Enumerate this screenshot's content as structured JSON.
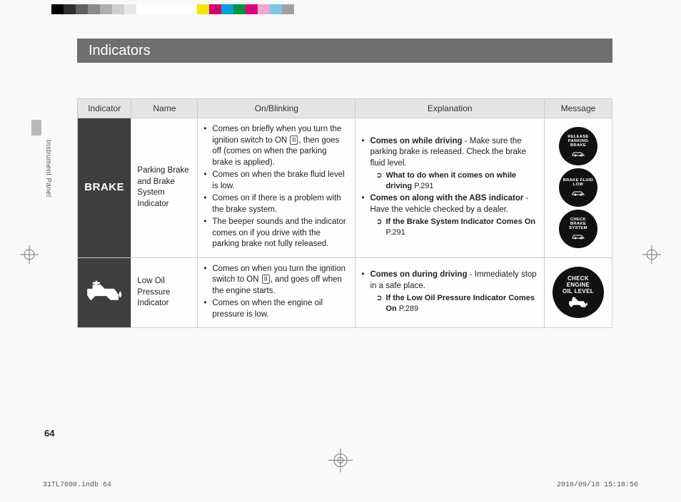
{
  "colorBar": [
    "#000000",
    "#2e2e2e",
    "#606060",
    "#8b8b8b",
    "#b0b0b0",
    "#d0d0d0",
    "#e8e8e8",
    "#ffffff",
    "#ffffff",
    "#ffffff",
    "#ffffff",
    "#ffffff",
    "#f2e600",
    "#d4006e",
    "#00a0dc",
    "#009640",
    "#e3007b",
    "#f4a6c7",
    "#7ec6e6",
    "#a0a0a0"
  ],
  "title": "Indicators",
  "sideLabel": "Instrument Panel",
  "pageNumber": "64",
  "footerLeft": "31TL7600.indb   64",
  "footerRight": "2010/09/10   15:18:56",
  "table": {
    "headers": [
      "Indicator",
      "Name",
      "On/Blinking",
      "Explanation",
      "Message"
    ],
    "rows": [
      {
        "indicator": {
          "type": "brake",
          "text": "BRAKE"
        },
        "name": "Parking Brake and Brake System Indicator",
        "onBlinking": {
          "items": [
            {
              "pre": "Comes on briefly when you turn the ignition switch to ON ",
              "ii": "II",
              "post": ", then goes off (comes on when the parking brake is applied)."
            },
            {
              "pre": "Comes on when the brake fluid level is low."
            },
            {
              "pre": "Comes on if there is a problem with the brake system."
            },
            {
              "pre": "The beeper sounds and the indicator comes on if you drive with the parking brake not fully released."
            }
          ]
        },
        "explanation": {
          "items": [
            {
              "bold": "Comes on while driving",
              "rest": " - Make sure the parking brake is released. Check the brake fluid level.",
              "ref": {
                "bold": "What to do when it comes on while driving",
                "page": "P.291"
              }
            },
            {
              "bold": "Comes on along with the ABS indicator",
              "rest": " - Have the vehicle checked by a dealer.",
              "ref": {
                "bold": "If the Brake System Indicator Comes On",
                "page": "P.291"
              }
            }
          ]
        },
        "messages": [
          {
            "lines": [
              "RELEASE",
              "PARKING",
              "BRAKE"
            ],
            "icon": "car"
          },
          {
            "lines": [
              "BRAKE FLUID",
              "LOW"
            ],
            "icon": "car"
          },
          {
            "lines": [
              "CHECK",
              "BRAKE",
              "SYSTEM"
            ],
            "icon": "car"
          }
        ]
      },
      {
        "indicator": {
          "type": "oil"
        },
        "name": "Low Oil Pressure Indicator",
        "onBlinking": {
          "items": [
            {
              "pre": "Comes on when you turn the ignition switch to ON ",
              "ii": "II",
              "post": ", and goes off when the engine starts."
            },
            {
              "pre": "Comes on when the engine oil pressure is low."
            }
          ]
        },
        "explanation": {
          "items": [
            {
              "bold": "Comes on during driving",
              "rest": " - Immediately stop in a safe place.",
              "ref": {
                "bold": "If the Low Oil Pressure Indicator Comes On",
                "page": "P.289"
              }
            }
          ]
        },
        "messages": [
          {
            "lines": [
              "CHECK",
              "ENGINE",
              "OIL LEVEL"
            ],
            "icon": "oil",
            "big": true
          }
        ]
      }
    ]
  }
}
